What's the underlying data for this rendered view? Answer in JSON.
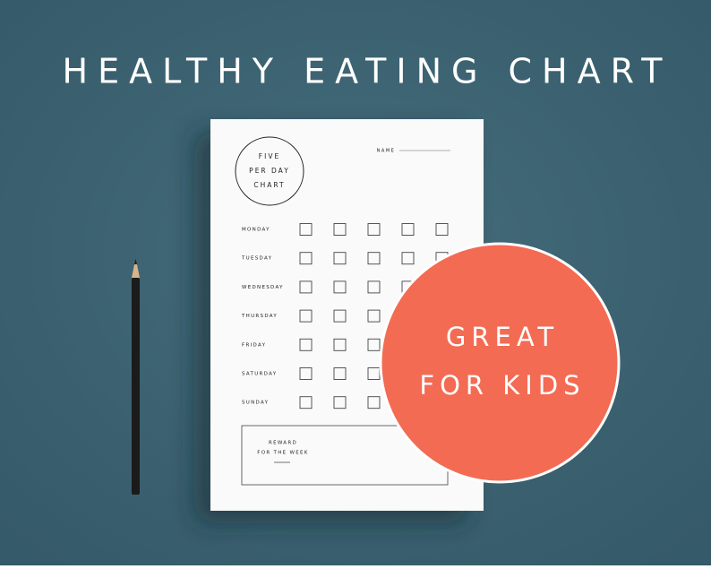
{
  "title": "HEALTHY EATING CHART",
  "card": {
    "circle_lines": [
      "FIVE",
      "PER DAY",
      "CHART"
    ],
    "name_label": "NAME",
    "days": [
      "MONDAY",
      "TUESDAY",
      "WEDNESDAY",
      "THURSDAY",
      "FRIDAY",
      "SATURDAY",
      "SUNDAY"
    ],
    "reward_lines": [
      "REWARD",
      "FOR THE WEEK"
    ]
  },
  "badge": {
    "lines": [
      "GREAT",
      "FOR KIDS"
    ]
  }
}
